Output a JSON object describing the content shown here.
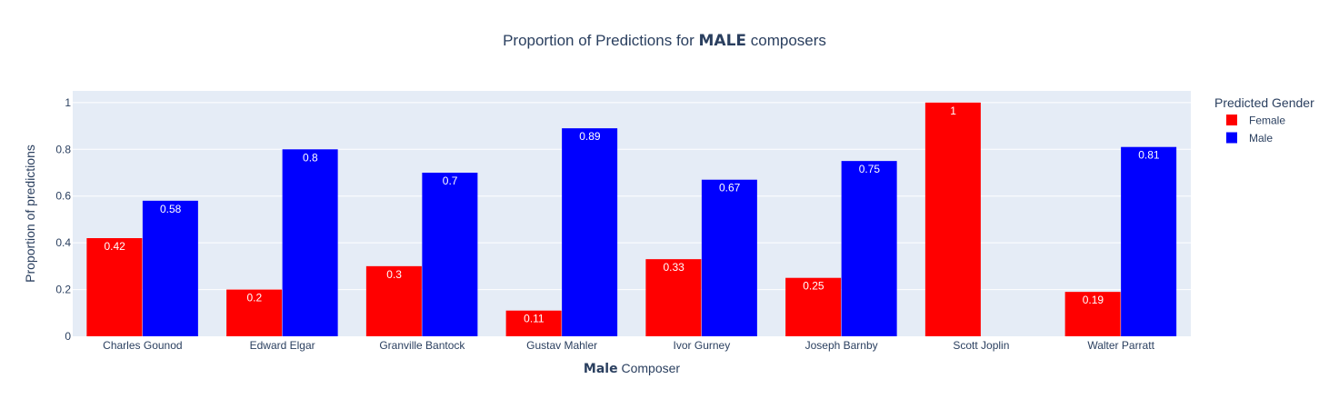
{
  "chart_data": {
    "type": "bar",
    "title": {
      "prefix": "Proportion of Predictions for ",
      "emphasis": "MALE",
      "suffix": " composers"
    },
    "xlabel": {
      "emphasis": "Male",
      "suffix": " Composer"
    },
    "ylabel": "Proportion of predictions",
    "categories": [
      "Charles Gounod",
      "Edward Elgar",
      "Granville Bantock",
      "Gustav Mahler",
      "Ivor Gurney",
      "Joseph Barnby",
      "Scott Joplin",
      "Walter Parratt"
    ],
    "series": [
      {
        "name": "Female",
        "color": "#ff0000",
        "values": [
          0.42,
          0.2,
          0.3,
          0.11,
          0.33,
          0.25,
          1,
          0.19
        ]
      },
      {
        "name": "Male",
        "color": "#0000ff",
        "values": [
          0.58,
          0.8,
          0.7,
          0.89,
          0.67,
          0.75,
          null,
          0.81
        ]
      }
    ],
    "ylim": [
      0,
      1.05
    ],
    "yticks": [
      0,
      0.2,
      0.4,
      0.6,
      0.8,
      1
    ],
    "ytick_labels": [
      "0",
      "0.2",
      "0.4",
      "0.6",
      "0.8",
      "1"
    ],
    "grid": true,
    "plot_background": "#e5ecf6",
    "legend": {
      "title": "Predicted Gender",
      "position": "right"
    }
  }
}
